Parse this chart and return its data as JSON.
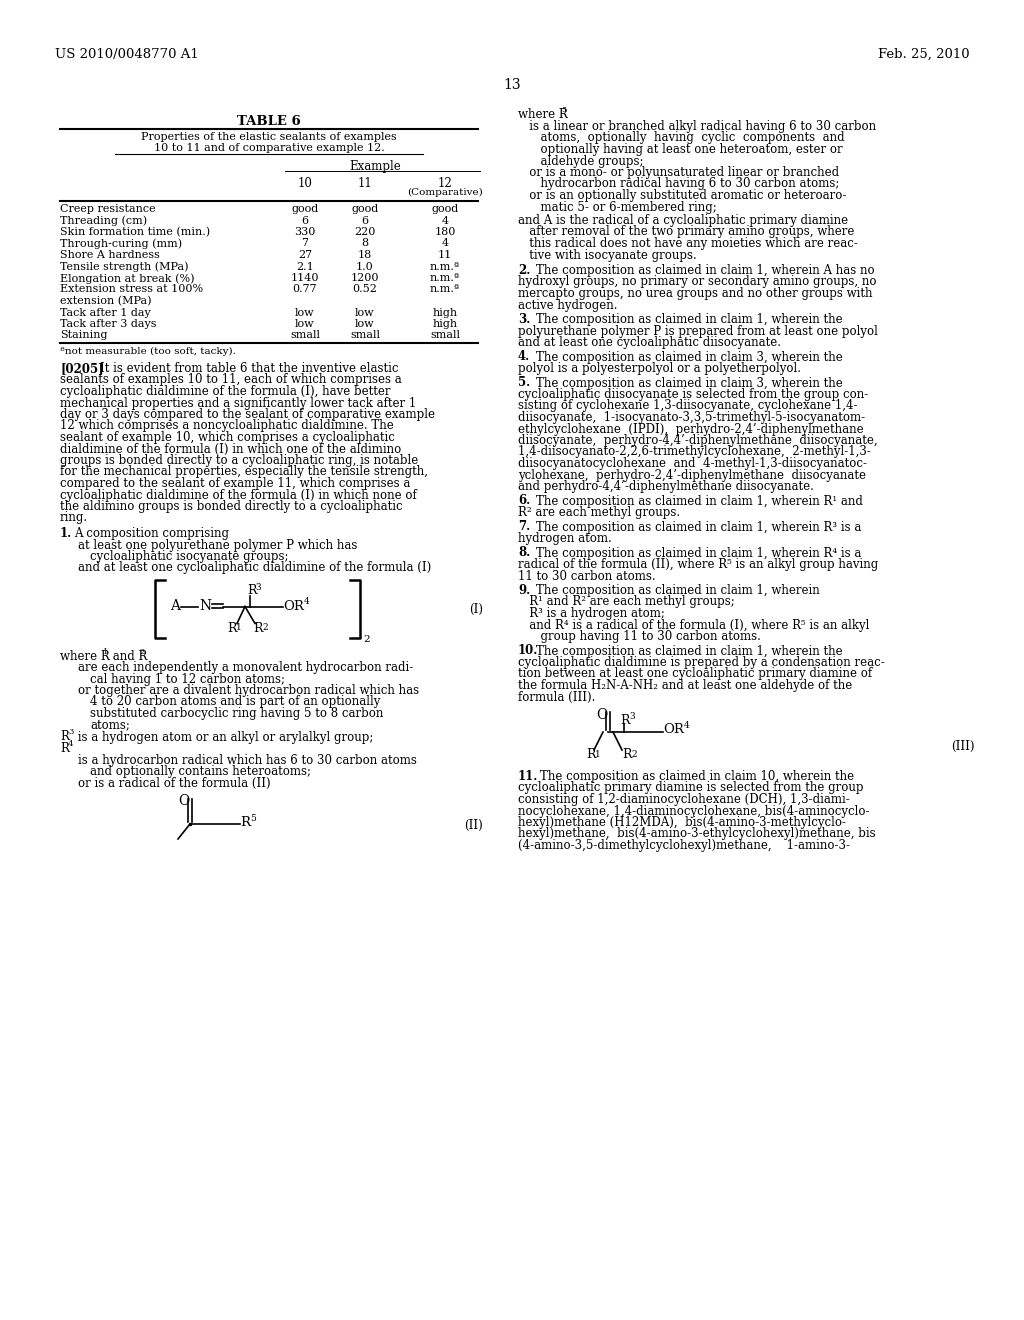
{
  "bg_color": "#ffffff",
  "header_left": "US 2010/0048770 A1",
  "header_right": "Feb. 25, 2010",
  "page_num": "13",
  "table_title": "TABLE 6",
  "table_subtitle1": "Properties of the elastic sealants of examples",
  "table_subtitle2": "10 to 11 and of comparative example 12.",
  "table_col_header": "Example",
  "table_rows": [
    [
      "Creep resistance",
      "good",
      "good",
      "good"
    ],
    [
      "Threading (cm)",
      "6",
      "6",
      "4"
    ],
    [
      "Skin formation time (min.)",
      "330",
      "220",
      "180"
    ],
    [
      "Through-curing (mm)",
      "7",
      "8",
      "4"
    ],
    [
      "Shore A hardness",
      "27",
      "18",
      "11"
    ],
    [
      "Tensile strength (MPa)",
      "2.1",
      "1.0",
      "n.m.ª"
    ],
    [
      "Elongation at break (%)",
      "1140",
      "1200",
      "n.m.ª"
    ],
    [
      "Extension stress at 100%",
      "0.77",
      "0.52",
      "n.m.ª"
    ],
    [
      "extension (MPa)",
      "",
      "",
      ""
    ],
    [
      "Tack after 1 day",
      "low",
      "low",
      "high"
    ],
    [
      "Tack after 3 days",
      "low",
      "low",
      "high"
    ],
    [
      "Staining",
      "small",
      "small",
      "small"
    ]
  ],
  "table_footnote": "ªnot measurable (too soft, tacky).",
  "para_0205_lines": [
    "It is evident from table 6 that the inventive elastic",
    "sealants of examples 10 to 11, each of which comprises a",
    "cycloaliphatic dialdimine of the formula (I), have better",
    "mechanical properties and a significantly lower tack after 1",
    "day or 3 days compared to the sealant of comparative example",
    "12 which comprises a noncycloaliphatic dialdimine. The",
    "sealant of example 10, which comprises a cycloaliphatic",
    "dialdimine of the formula (I) in which one of the aldimino",
    "groups is bonded directly to a cycloaliphatic ring, is notable",
    "for the mechanical properties, especially the tensile strength,",
    "compared to the sealant of example 11, which comprises a",
    "cycloaliphatic dialdimine of the formula (I) in which none of",
    "the aldimino groups is bonded directly to a cycloaliphatic",
    "ring."
  ],
  "right_col_r5_lines": [
    "   is a linear or branched alkyl radical having 6 to 30 carbon",
    "      atoms,  optionally  having  cyclic  components  and",
    "      optionally having at least one heteroatom, ester or",
    "      aldehyde groups;",
    "   or is a mono- or polyunsaturated linear or branched",
    "      hydrocarbon radical having 6 to 30 carbon atoms;",
    "   or is an optionally substituted aromatic or heteroaro-",
    "      matic 5- or 6-membered ring;"
  ],
  "right_col_A_lines": [
    "and A is the radical of a cycloaliphatic primary diamine",
    "   after removal of the two primary amino groups, where",
    "   this radical does not have any moieties which are reac-",
    "   tive with isocyanate groups."
  ],
  "claims_right": [
    [
      "2.",
      "The composition as claimed in claim 1, wherein A has no",
      "hydroxyl groups, no primary or secondary amino groups, no",
      "mercapto groups, no urea groups and no other groups with",
      "active hydrogen."
    ],
    [
      "3.",
      "The composition as claimed in claim 1, wherein the",
      "polyurethane polymer P is prepared from at least one polyol",
      "and at least one cycloaliphatic diisocyanate."
    ],
    [
      "4.",
      "The composition as claimed in claim 3, wherein the",
      "polyol is a polyesterpolyol or a polyetherpolyol."
    ],
    [
      "5.",
      "The composition as claimed in claim 3, wherein the",
      "cycloaliphatic diisocyanate is selected from the group con-",
      "sisting of cyclohexane 1,3-diisocyanate, cyclohexane 1,4-",
      "diisocyanate,  1-isocyanato-3,3,5-trimethyl-5-isocyanatom-",
      "ethylcyclohexane  (IPDI),  perhydro-2,4’-diphenylmethane",
      "diisocyanate,  perhydro-4,4’-diphenylmethane  diisocyanate,",
      "1,4-diisocyanato-2,2,6-trimethylcyclohexane,  2-methyl-1,3-",
      "diisocyanatocyclohexane  and  4-methyl-1,3-diisocyanatoc-",
      "yclohexane,  perhydro-2,4’-diphenylmethane  diisocyanate",
      "and perhydro-4,4’-diphenylmethane diisocyanate."
    ],
    [
      "6.",
      "The composition as claimed in claim 1, wherein R¹ and",
      "R² are each methyl groups."
    ],
    [
      "7.",
      "The composition as claimed in claim 1, wherein R³ is a",
      "hydrogen atom."
    ],
    [
      "8.",
      "The composition as claimed in claim 1, wherein R⁴ is a",
      "radical of the formula (II), where R⁵ is an alkyl group having",
      "11 to 30 carbon atoms."
    ],
    [
      "9.",
      "The composition as claimed in claim 1, wherein",
      "   R¹ and R² are each methyl groups;",
      "   R³ is a hydrogen atom;",
      "   and R⁴ is a radical of the formula (I), where R⁵ is an alkyl",
      "      group having 11 to 30 carbon atoms."
    ],
    [
      "10.",
      "The composition as claimed in claim 1, wherein the",
      "cycloaliphatic dialdimine is prepared by a condensation reac-",
      "tion between at least one cycloaliphatic primary diamine of",
      "the formula H₂N-A-NH₂ and at least one aldehyde of the",
      "formula (III)."
    ]
  ],
  "claim11_lines": [
    "11.",
    "The composition as claimed in claim 10, wherein the",
    "cycloaliphatic primary diamine is selected from the group",
    "consisting of 1,2-diaminocyclohexane (DCH), 1,3-diami-",
    "nocyclohexane, 1,4-diaminocyclohexane, bis(4-aminocyclo-",
    "hexyl)methane (H12MDA),  bis(4-amino-3-methylcyclo-",
    "hexyl)methane,  bis(4-amino-3-ethylcyclohexyl)methane, bis",
    "(4-amino-3,5-dimethylcyclohexyl)methane,    1-amino-3-"
  ]
}
